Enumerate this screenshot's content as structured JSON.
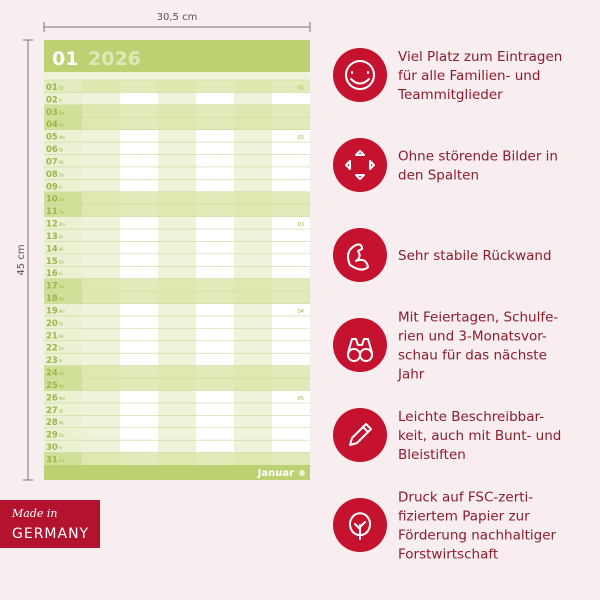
{
  "dimensions": {
    "width": "30,5 cm",
    "height": "45 cm"
  },
  "calendar": {
    "month_number": "01",
    "year": "2026",
    "month_name": "Januar",
    "days": [
      {
        "day": "01",
        "weekday": "Do",
        "week": "01"
      },
      {
        "day": "02",
        "weekday": "Fr"
      },
      {
        "day": "03",
        "weekday": "Sa"
      },
      {
        "day": "04",
        "weekday": "So"
      },
      {
        "day": "05",
        "weekday": "Mo",
        "week": "02"
      },
      {
        "day": "06",
        "weekday": "Di"
      },
      {
        "day": "07",
        "weekday": "Mi"
      },
      {
        "day": "08",
        "weekday": "Do"
      },
      {
        "day": "09",
        "weekday": "Fr"
      },
      {
        "day": "10",
        "weekday": "Sa"
      },
      {
        "day": "11",
        "weekday": "So"
      },
      {
        "day": "12",
        "weekday": "Mo",
        "week": "03"
      },
      {
        "day": "13",
        "weekday": "Di"
      },
      {
        "day": "14",
        "weekday": "Mi"
      },
      {
        "day": "15",
        "weekday": "Do"
      },
      {
        "day": "16",
        "weekday": "Fr"
      },
      {
        "day": "17",
        "weekday": "Sa"
      },
      {
        "day": "18",
        "weekday": "So"
      },
      {
        "day": "19",
        "weekday": "Mo",
        "week": "04"
      },
      {
        "day": "20",
        "weekday": "Di"
      },
      {
        "day": "21",
        "weekday": "Mi"
      },
      {
        "day": "22",
        "weekday": "Do"
      },
      {
        "day": "23",
        "weekday": "Fr"
      },
      {
        "day": "24",
        "weekday": "Sa"
      },
      {
        "day": "25",
        "weekday": "So"
      },
      {
        "day": "26",
        "weekday": "Mo",
        "week": "05"
      },
      {
        "day": "27",
        "weekday": "Di"
      },
      {
        "day": "28",
        "weekday": "Mi"
      },
      {
        "day": "29",
        "weekday": "Do"
      },
      {
        "day": "30",
        "weekday": "Fr"
      },
      {
        "day": "31",
        "weekday": "Sa"
      }
    ]
  },
  "badge": {
    "line1": "Made in",
    "line2": "GERMANY"
  },
  "features": [
    {
      "lines": [
        "Viel Platz zum Eintragen",
        "für alle Familien- und",
        "Teammitglieder"
      ]
    },
    {
      "lines": [
        "Ohne störende Bilder in",
        "den Spalten"
      ]
    },
    {
      "lines": [
        "Sehr stabile Rückwand"
      ]
    },
    {
      "lines": [
        "Mit Feiertagen, Schulfe-",
        "rien und 3-Monatsvor-",
        "schau für das nächste",
        "Jahr"
      ]
    },
    {
      "lines": [
        "Leichte Beschreibbar-",
        "keit, auch mit Bunt- und",
        "Bleistiften"
      ]
    },
    {
      "lines": [
        "Druck auf FSC-zerti-",
        "fiziertem Papier zur",
        "Förderung nachhaltiger",
        "Forstwirtschaft"
      ]
    }
  ]
}
